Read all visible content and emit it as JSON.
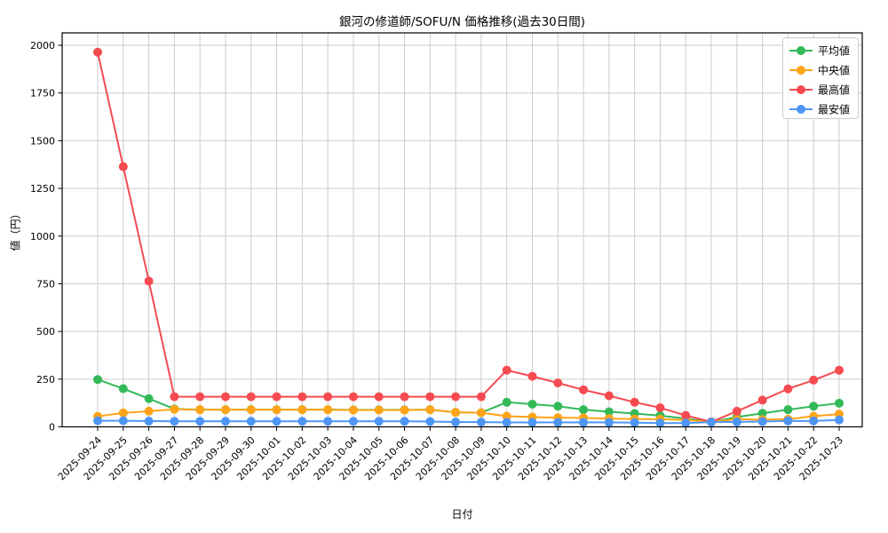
{
  "title": "銀河の修道師/SOFU/N 価格推移(過去30日間)",
  "axes": {
    "xlabel": "日付",
    "ylabel": "値（円）"
  },
  "legend": {
    "position": "upper right",
    "items": [
      "平均値",
      "中央値",
      "最高値",
      "最安値"
    ]
  },
  "colors": {
    "average": "#33b957",
    "median": "#ffa418",
    "max": "#f54b50",
    "min": "#4e96f5",
    "grid": "#cccccc",
    "spine": "#000000",
    "background": "#ffffff"
  },
  "chart_data": {
    "type": "line",
    "title": "銀河の修道師/SOFU/N 価格推移(過去30日間)",
    "xlabel": "日付",
    "ylabel": "値（円）",
    "ylim": [
      0,
      2000
    ],
    "yticks": [
      0,
      250,
      500,
      750,
      1000,
      1250,
      1500,
      1750,
      2000
    ],
    "grid": true,
    "legend_position": "upper right",
    "marker": "circle",
    "categories": [
      "2025-09-24",
      "2025-09-25",
      "2025-09-26",
      "2025-09-27",
      "2025-09-28",
      "2025-09-29",
      "2025-09-30",
      "2025-10-01",
      "2025-10-02",
      "2025-10-03",
      "2025-10-04",
      "2025-10-05",
      "2025-10-06",
      "2025-10-07",
      "2025-10-08",
      "2025-10-09",
      "2025-10-10",
      "2025-10-11",
      "2025-10-12",
      "2025-10-13",
      "2025-10-14",
      "2025-10-15",
      "2025-10-16",
      "2025-10-17",
      "2025-10-18",
      "2025-10-19",
      "2025-10-20",
      "2025-10-21",
      "2025-10-22",
      "2025-10-23"
    ],
    "series": [
      {
        "name": "平均値",
        "key": "average",
        "color": "#33b957",
        "values": [
          248,
          200,
          148,
          94,
          90,
          90,
          90,
          90,
          90,
          90,
          89,
          89,
          89,
          90,
          76,
          74,
          129,
          119,
          108,
          90,
          79,
          70,
          59,
          43,
          26,
          51,
          71,
          90,
          108,
          124
        ]
      },
      {
        "name": "中央値",
        "key": "median",
        "color": "#ffa418",
        "values": [
          55,
          73,
          82,
          92,
          90,
          90,
          90,
          90,
          90,
          90,
          88,
          88,
          88,
          90,
          76,
          74,
          56,
          51,
          48,
          47,
          43,
          41,
          40,
          36,
          26,
          40,
          38,
          40,
          56,
          67
        ]
      },
      {
        "name": "最高値",
        "key": "max",
        "color": "#f54b50",
        "values": [
          1964,
          1364,
          764,
          158,
          158,
          158,
          158,
          158,
          158,
          158,
          158,
          158,
          158,
          158,
          158,
          158,
          297,
          265,
          230,
          194,
          163,
          129,
          100,
          60,
          26,
          82,
          140,
          199,
          245,
          297
        ]
      },
      {
        "name": "最安値",
        "key": "min",
        "color": "#4e96f5",
        "values": [
          32,
          32,
          30,
          29,
          29,
          29,
          29,
          29,
          29,
          29,
          29,
          29,
          29,
          28,
          25,
          25,
          23,
          23,
          23,
          23,
          23,
          22,
          20,
          20,
          25,
          26,
          28,
          31,
          31,
          36
        ]
      }
    ]
  }
}
